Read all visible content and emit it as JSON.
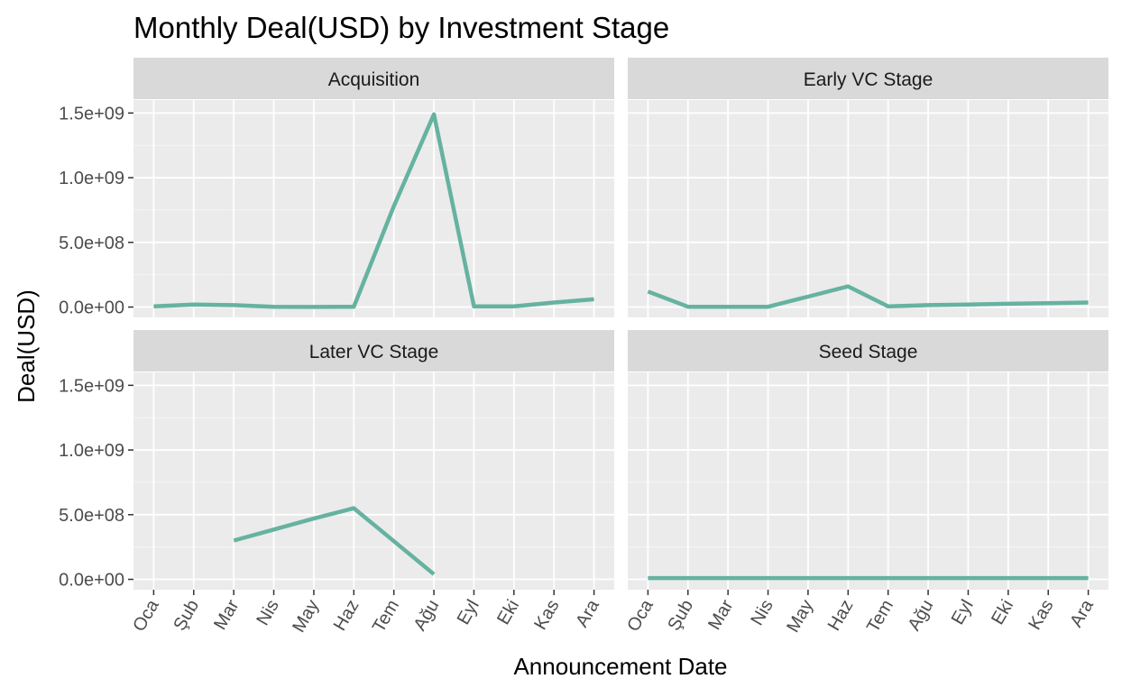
{
  "chart_data": {
    "type": "line",
    "title": "Monthly Deal(USD) by Investment Stage",
    "xlabel": "Announcement Date",
    "ylabel": "Deal(USD)",
    "categories": [
      "Oca",
      "Şub",
      "Mar",
      "Nis",
      "May",
      "Haz",
      "Tem",
      "Ağu",
      "Eyl",
      "Eki",
      "Kas",
      "Ara"
    ],
    "y_ticks": [
      "0.0e+00",
      "5.0e+08",
      "1.0e+09",
      "1.5e+09"
    ],
    "y_tick_values": [
      0,
      500000000,
      1000000000,
      1500000000
    ],
    "ylim": [
      -80000000,
      1600000000
    ],
    "line_color": "#66b2a0",
    "panel_background": "#ebebeb",
    "strip_background": "#d9d9d9",
    "grid": true,
    "legend": "none",
    "facets": [
      {
        "name": "Acquisition",
        "values": [
          5000000,
          20000000,
          15000000,
          2000000,
          1000000,
          2000000,
          780000000,
          1490000000,
          5000000,
          5000000,
          35000000,
          60000000
        ]
      },
      {
        "name": "Early VC Stage",
        "values": [
          120000000,
          2000000,
          2000000,
          2000000,
          80000000,
          160000000,
          5000000,
          15000000,
          20000000,
          25000000,
          30000000,
          35000000
        ]
      },
      {
        "name": "Later VC Stage",
        "values": [
          null,
          null,
          300000000,
          385000000,
          470000000,
          550000000,
          295000000,
          40000000,
          null,
          null,
          null,
          null
        ]
      },
      {
        "name": "Seed Stage",
        "values": [
          10000000,
          10000000,
          10000000,
          10000000,
          10000000,
          10000000,
          10000000,
          10000000,
          10000000,
          10000000,
          10000000,
          10000000
        ]
      }
    ]
  }
}
